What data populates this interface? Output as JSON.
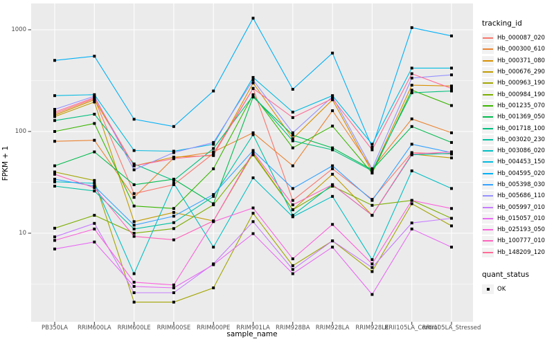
{
  "chart_data": {
    "type": "line",
    "title": "",
    "xlabel": "sample_name",
    "ylabel": "FPKM + 1",
    "y_scale": "log10",
    "ylim": [
      1.35,
      1700
    ],
    "y_ticks": [
      10,
      100,
      1000
    ],
    "y_tick_labels": [
      "10",
      "100",
      "1000"
    ],
    "y_minor_ticks": [
      3.162,
      31.62,
      316.2
    ],
    "grid": true,
    "panel_bg": "#EBEBEB",
    "grid_color": "#FFFFFF",
    "tick_text_color": "#4D4D4D",
    "point_color": "#000000",
    "legend_title": "tracking_id",
    "legend_position": "right",
    "categories": [
      "PB350LA",
      "RRIM600LA",
      "RRIM600LE",
      "RRIM600SE",
      "RRIM600PE",
      "RRIM901LA",
      "RRIM928BA",
      "RRIM928LA",
      "RRIM928LE",
      "RRII105LA_Control",
      "RRII105LA_Stressed"
    ],
    "series": [
      {
        "name": "Hb_000087_020",
        "color": "#F8766D",
        "values": [
          150,
          210,
          24.5,
          30,
          61,
          265,
          21,
          43,
          21.5,
          62,
          60
        ]
      },
      {
        "name": "Hb_000300_610",
        "color": "#EA8331",
        "values": [
          80,
          82,
          22.5,
          55,
          63,
          97,
          46,
          160,
          43,
          133,
          97
        ]
      },
      {
        "name": "Hb_000371_080",
        "color": "#D89000",
        "values": [
          145,
          205,
          46,
          56,
          58,
          300,
          85,
          205,
          40,
          285,
          280
        ]
      },
      {
        "name": "Hb_000676_290",
        "color": "#C09B00",
        "values": [
          140,
          195,
          13,
          16,
          13.2,
          61,
          17,
          38,
          15,
          60,
          55
        ]
      },
      {
        "name": "Hb_000963_190",
        "color": "#A3A500",
        "values": [
          40,
          33,
          2.1,
          2.1,
          2.9,
          15.7,
          4.8,
          8.4,
          4.2,
          19.5,
          11.8
        ]
      },
      {
        "name": "Hb_000984_190",
        "color": "#7CAE00",
        "values": [
          11.2,
          15,
          10,
          11.1,
          19,
          59,
          17,
          29,
          18.8,
          21,
          14
        ]
      },
      {
        "name": "Hb_001235_070",
        "color": "#39B600",
        "values": [
          100,
          120,
          18.5,
          17.5,
          43,
          230,
          69,
          113,
          39,
          255,
          180
        ]
      },
      {
        "name": "Hb_001369_050",
        "color": "#00BB4E",
        "values": [
          46,
          63,
          30,
          34,
          19.5,
          218,
          92,
          69,
          42,
          112,
          78
        ]
      },
      {
        "name": "Hb_001718_100",
        "color": "#00BF7D",
        "values": [
          128,
          148,
          48,
          33,
          68,
          225,
          81,
          66,
          41,
          240,
          250
        ]
      },
      {
        "name": "Hb_003020_230",
        "color": "#00C1A3",
        "values": [
          29,
          26,
          11,
          12.7,
          23,
          93,
          15,
          30,
          15,
          59,
          61
        ]
      },
      {
        "name": "Hb_003086_020",
        "color": "#00BFC4",
        "values": [
          32,
          31,
          4.0,
          31,
          7.3,
          35,
          14.5,
          23,
          5.5,
          41,
          27.5
        ]
      },
      {
        "name": "Hb_004453_150",
        "color": "#00BAE0",
        "values": [
          225,
          230,
          65,
          64,
          75,
          340,
          155,
          225,
          75,
          420,
          420
        ]
      },
      {
        "name": "Hb_004595_020",
        "color": "#00B0F6",
        "values": [
          500,
          550,
          132,
          112,
          250,
          1300,
          260,
          590,
          70,
          1050,
          870
        ]
      },
      {
        "name": "Hb_005398_030",
        "color": "#35A2FF",
        "values": [
          34,
          29,
          12,
          14.7,
          24,
          65,
          27.5,
          46,
          21,
          75,
          62
        ]
      },
      {
        "name": "Hb_005686_110",
        "color": "#9590FF",
        "values": [
          165,
          222,
          42,
          62,
          78,
          320,
          97,
          220,
          43,
          335,
          360
        ]
      },
      {
        "name": "Hb_005997_010",
        "color": "#C77CFF",
        "values": [
          9.2,
          12.5,
          2.6,
          2.6,
          5.0,
          13,
          4.4,
          8.4,
          4.6,
          12.6,
          14
        ]
      },
      {
        "name": "Hb_015057_010",
        "color": "#E76BF3",
        "values": [
          7.0,
          8.2,
          3.0,
          2.9,
          4.9,
          9.9,
          4.0,
          7.3,
          2.5,
          11,
          7.3
        ]
      },
      {
        "name": "Hb_025193_050",
        "color": "#FA62DB",
        "values": [
          8.5,
          11,
          3.3,
          3.1,
          13,
          17.7,
          5.6,
          12.2,
          5.0,
          21,
          17.5
        ]
      },
      {
        "name": "Hb_100777_010",
        "color": "#FF62BC",
        "values": [
          38,
          28,
          9.3,
          8.6,
          13.2,
          63,
          19,
          30,
          15,
          60,
          63
        ]
      },
      {
        "name": "Hb_148209_120",
        "color": "#FF6A98",
        "values": [
          155,
          215,
          46,
          54,
          59,
          265,
          137,
          210,
          66,
          370,
          265
        ]
      }
    ],
    "point_legend": {
      "title": "quant_status",
      "items": [
        {
          "label": "OK"
        }
      ]
    }
  }
}
